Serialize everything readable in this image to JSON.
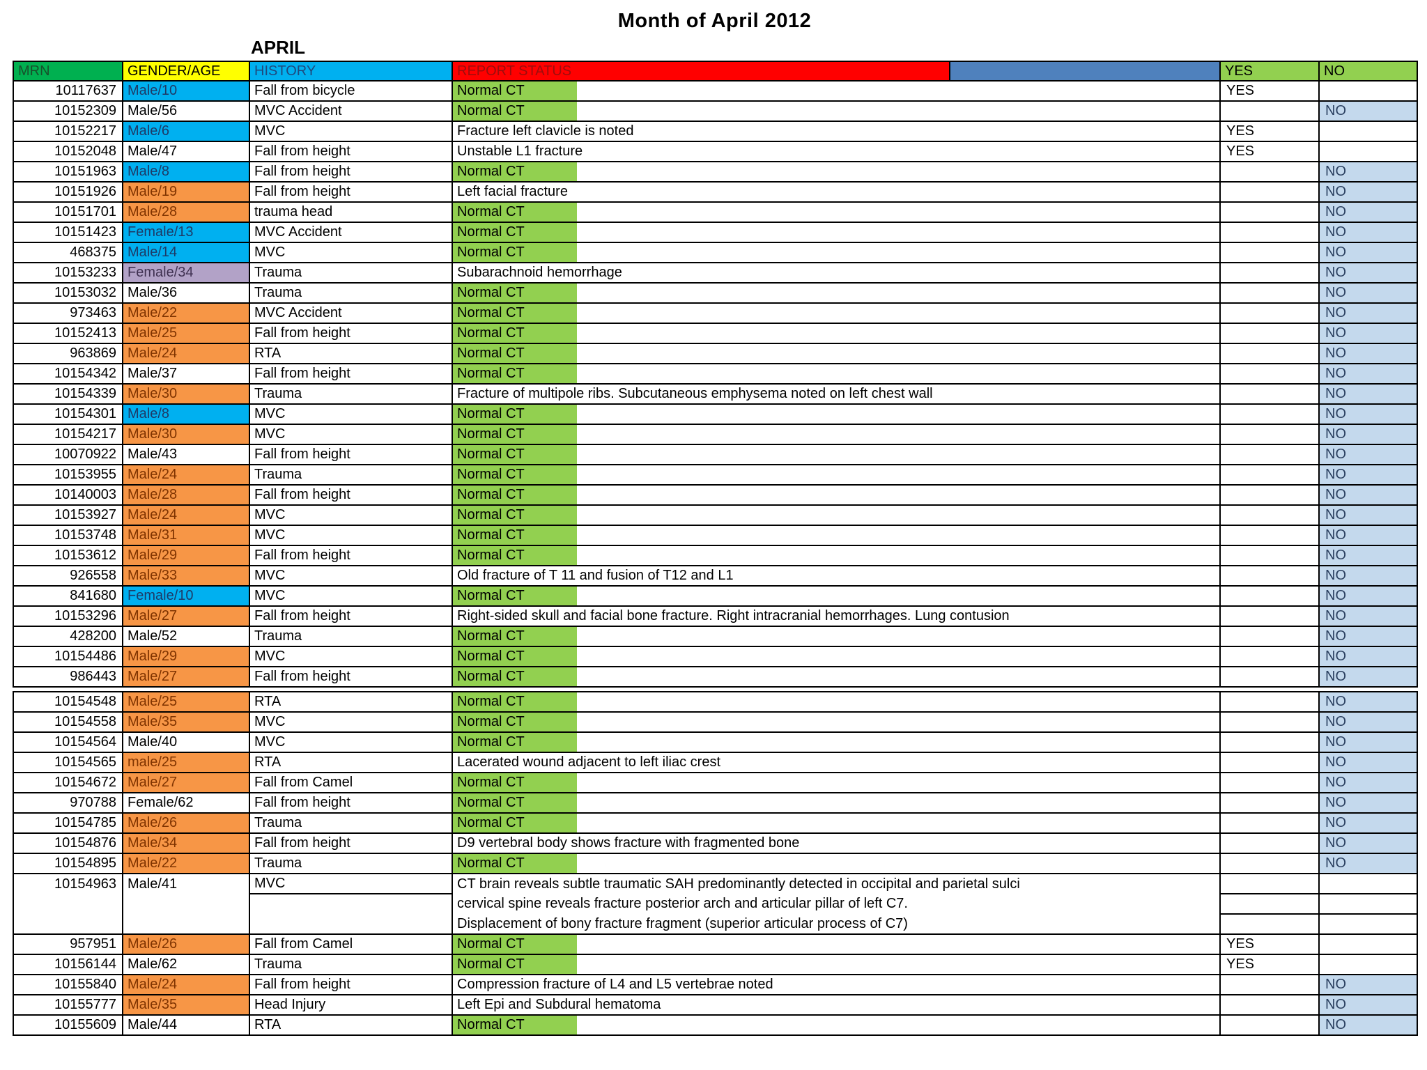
{
  "page": {
    "title": "Month of April 2012",
    "sheet_label": "APRIL"
  },
  "table": {
    "columns": [
      {
        "key": "mrn",
        "label": "MRN"
      },
      {
        "key": "gender_age",
        "label": "GENDER/AGE"
      },
      {
        "key": "history",
        "label": "HISTORY"
      },
      {
        "key": "report_status",
        "label": "REPORT STATUS"
      },
      {
        "key": "blank",
        "label": ""
      },
      {
        "key": "yes",
        "label": "YES"
      },
      {
        "key": "no",
        "label": "NO"
      }
    ],
    "colors": {
      "header_mrn_bg": "#00B050",
      "header_gender_bg": "#FFFF00",
      "header_history_bg": "#00B0F0",
      "header_report_bg": "#FF0000",
      "header_blank_bg": "#4F81BD",
      "header_yes_no_bg": "#92D050",
      "normal_ct_highlight_bg": "#92D050",
      "no_cell_bg": "#C4D9ED",
      "gender_blue_bg": "#00B0F0",
      "gender_orange_bg": "#F79646",
      "gender_purple_bg": "#B2A2C7",
      "border": "#000000"
    },
    "rows": [
      {
        "mrn": "10117637",
        "gender": "Male/10",
        "gender_style": "blue",
        "history": "Fall from bicycle",
        "report": "Normal CT",
        "highlight": true,
        "answer": "YES"
      },
      {
        "mrn": "10152309",
        "gender": "Male/56",
        "gender_style": "plain",
        "history": "MVC Accident",
        "report": "Normal CT",
        "highlight": true,
        "answer": "NO"
      },
      {
        "mrn": "10152217",
        "gender": "Male/6",
        "gender_style": "blue",
        "history": "MVC",
        "report": "Fracture left clavicle is noted",
        "highlight": false,
        "answer": "YES"
      },
      {
        "mrn": "10152048",
        "gender": "Male/47",
        "gender_style": "plain",
        "history": "Fall from height",
        "report": "Unstable L1 fracture",
        "highlight": false,
        "answer": "YES"
      },
      {
        "mrn": "10151963",
        "gender": "Male/8",
        "gender_style": "blue",
        "history": "Fall from height",
        "report": "Normal CT",
        "highlight": true,
        "answer": "NO"
      },
      {
        "mrn": "10151926",
        "gender": "Male/19",
        "gender_style": "orange",
        "history": "Fall from height",
        "report": "Left facial fracture",
        "highlight": false,
        "answer": "NO"
      },
      {
        "mrn": "10151701",
        "gender": "Male/28",
        "gender_style": "orange",
        "history": "trauma head",
        "report": "Normal CT",
        "highlight": true,
        "answer": "NO"
      },
      {
        "mrn": "10151423",
        "gender": "Female/13",
        "gender_style": "blue",
        "history": "MVC Accident",
        "report": "Normal CT",
        "highlight": true,
        "answer": "NO"
      },
      {
        "mrn": "468375",
        "gender": "Male/14",
        "gender_style": "blue",
        "history": "MVC",
        "report": "Normal CT",
        "highlight": true,
        "answer": "NO"
      },
      {
        "mrn": "10153233",
        "gender": "Female/34",
        "gender_style": "purple",
        "history": "Trauma",
        "report": "Subarachnoid hemorrhage",
        "highlight": false,
        "answer": "NO"
      },
      {
        "mrn": "10153032",
        "gender": "Male/36",
        "gender_style": "plain",
        "history": "Trauma",
        "report": "Normal CT",
        "highlight": true,
        "answer": "NO"
      },
      {
        "mrn": "973463",
        "gender": "Male/22",
        "gender_style": "orange",
        "history": "MVC Accident",
        "report": "Normal CT",
        "highlight": true,
        "answer": "NO"
      },
      {
        "mrn": "10152413",
        "gender": "Male/25",
        "gender_style": "orange",
        "history": "Fall from height",
        "report": "Normal CT",
        "highlight": true,
        "answer": "NO"
      },
      {
        "mrn": "963869",
        "gender": "Male/24",
        "gender_style": "orange",
        "history": "RTA",
        "report": "Normal CT",
        "highlight": true,
        "answer": "NO"
      },
      {
        "mrn": "10154342",
        "gender": "Male/37",
        "gender_style": "plain",
        "history": "Fall from height",
        "report": "Normal CT",
        "highlight": true,
        "answer": "NO"
      },
      {
        "mrn": "10154339",
        "gender": "Male/30",
        "gender_style": "orange",
        "history": "Trauma",
        "report": "Fracture of multipole ribs. Subcutaneous emphysema noted on left chest wall",
        "highlight": false,
        "answer": "NO"
      },
      {
        "mrn": "10154301",
        "gender": "Male/8",
        "gender_style": "blue",
        "history": "MVC",
        "report": "Normal CT",
        "highlight": true,
        "answer": "NO"
      },
      {
        "mrn": "10154217",
        "gender": "Male/30",
        "gender_style": "orange",
        "history": "MVC",
        "report": "Normal CT",
        "highlight": true,
        "answer": "NO"
      },
      {
        "mrn": "10070922",
        "gender": "Male/43",
        "gender_style": "plain",
        "history": "Fall from height",
        "report": "Normal CT",
        "highlight": true,
        "answer": "NO"
      },
      {
        "mrn": "10153955",
        "gender": "Male/24",
        "gender_style": "orange",
        "history": "Trauma",
        "report": "Normal CT",
        "highlight": true,
        "answer": "NO"
      },
      {
        "mrn": "10140003",
        "gender": "Male/28",
        "gender_style": "orange",
        "history": "Fall from height",
        "report": "Normal CT",
        "highlight": true,
        "answer": "NO"
      },
      {
        "mrn": "10153927",
        "gender": "Male/24",
        "gender_style": "orange",
        "history": "MVC",
        "report": "Normal CT",
        "highlight": true,
        "answer": "NO"
      },
      {
        "mrn": "10153748",
        "gender": "Male/31",
        "gender_style": "orange",
        "history": "MVC",
        "report": "Normal CT",
        "highlight": true,
        "answer": "NO"
      },
      {
        "mrn": "10153612",
        "gender": "Male/29",
        "gender_style": "orange",
        "history": "Fall from height",
        "report": "Normal CT",
        "highlight": true,
        "answer": "NO"
      },
      {
        "mrn": "926558",
        "gender": "Male/33",
        "gender_style": "orange",
        "history": "MVC",
        "report": "Old fracture of T 11 and fusion of T12 and L1",
        "highlight": false,
        "answer": "NO"
      },
      {
        "mrn": "841680",
        "gender": "Female/10",
        "gender_style": "blue",
        "history": "MVC",
        "report": "Normal CT",
        "highlight": true,
        "answer": "NO"
      },
      {
        "mrn": "10153296",
        "gender": "Male/27",
        "gender_style": "orange",
        "history": "Fall from height",
        "report": "Right-sided skull and facial bone fracture. Right intracranial hemorrhages. Lung contusion",
        "highlight": false,
        "answer": "NO"
      },
      {
        "mrn": "428200",
        "gender": "Male/52",
        "gender_style": "plain",
        "history": "Trauma",
        "report": "Normal CT",
        "highlight": true,
        "answer": "NO"
      },
      {
        "mrn": "10154486",
        "gender": "Male/29",
        "gender_style": "orange",
        "history": "MVC",
        "report": "Normal CT",
        "highlight": true,
        "answer": "NO"
      },
      {
        "mrn": "986443",
        "gender": "Male/27",
        "gender_style": "orange",
        "history": "Fall from height",
        "report": "Normal CT",
        "highlight": true,
        "answer": "NO",
        "gap_after": true
      },
      {
        "mrn": "10154548",
        "gender": "Male/25",
        "gender_style": "orange",
        "history": "RTA",
        "report": "Normal CT",
        "highlight": true,
        "answer": "NO"
      },
      {
        "mrn": "10154558",
        "gender": "Male/35",
        "gender_style": "orange",
        "history": "MVC",
        "report": "Normal CT",
        "highlight": true,
        "answer": "NO"
      },
      {
        "mrn": "10154564",
        "gender": "Male/40",
        "gender_style": "plain",
        "history": "MVC",
        "report": "Normal CT",
        "highlight": true,
        "answer": "NO"
      },
      {
        "mrn": "10154565",
        "gender": "male/25",
        "gender_style": "orange",
        "history": "RTA",
        "report": "Lacerated wound adjacent to left iliac crest",
        "highlight": false,
        "answer": "NO"
      },
      {
        "mrn": "10154672",
        "gender": "Male/27",
        "gender_style": "orange",
        "history": "Fall from Camel",
        "report": "Normal CT",
        "highlight": true,
        "answer": "NO"
      },
      {
        "mrn": "970788",
        "gender": "Female/62",
        "gender_style": "plain",
        "history": "Fall from height",
        "report": "Normal CT",
        "highlight": true,
        "answer": "NO"
      },
      {
        "mrn": "10154785",
        "gender": "Male/26",
        "gender_style": "orange",
        "history": "Trauma",
        "report": "Normal CT",
        "highlight": true,
        "answer": "NO"
      },
      {
        "mrn": "10154876",
        "gender": "Male/34",
        "gender_style": "orange",
        "history": "Fall from height",
        "report": "D9 vertebral body shows fracture with fragmented bone",
        "highlight": false,
        "answer": "NO"
      },
      {
        "mrn": "10154895",
        "gender": "Male/22",
        "gender_style": "orange",
        "history": "Trauma",
        "report": "Normal CT",
        "highlight": true,
        "answer": "NO"
      },
      {
        "mrn": "10154963",
        "gender": "Male/41",
        "gender_style": "plain",
        "history": "MVC",
        "multiline": true,
        "report_lines": [
          "CT brain reveals subtle traumatic SAH predominantly detected in occipital and parietal sulci",
          "cervical spine reveals fracture posterior arch and articular pillar of left C7.",
          "Displacement of bony fracture fragment (superior articular process of C7)"
        ],
        "answer": ""
      },
      {
        "mrn": "957951",
        "gender": "Male/26",
        "gender_style": "orange",
        "history": "Fall from Camel",
        "report": "Normal CT",
        "highlight": true,
        "answer": "YES"
      },
      {
        "mrn": "10156144",
        "gender": "Male/62",
        "gender_style": "plain",
        "history": "Trauma",
        "report": "Normal CT",
        "highlight": true,
        "answer": "YES"
      },
      {
        "mrn": "10155840",
        "gender": "Male/24",
        "gender_style": "orange",
        "history": "Fall from height",
        "report": "Compression fracture of L4 and L5 vertebrae noted",
        "highlight": false,
        "answer": "NO"
      },
      {
        "mrn": "10155777",
        "gender": "Male/35",
        "gender_style": "orange",
        "history": "Head Injury",
        "report": "Left Epi and Subdural hematoma",
        "highlight": false,
        "answer": "NO"
      },
      {
        "mrn": "10155609",
        "gender": "Male/44",
        "gender_style": "plain",
        "history": "RTA",
        "report": "Normal CT",
        "highlight": true,
        "answer": "NO"
      }
    ]
  }
}
